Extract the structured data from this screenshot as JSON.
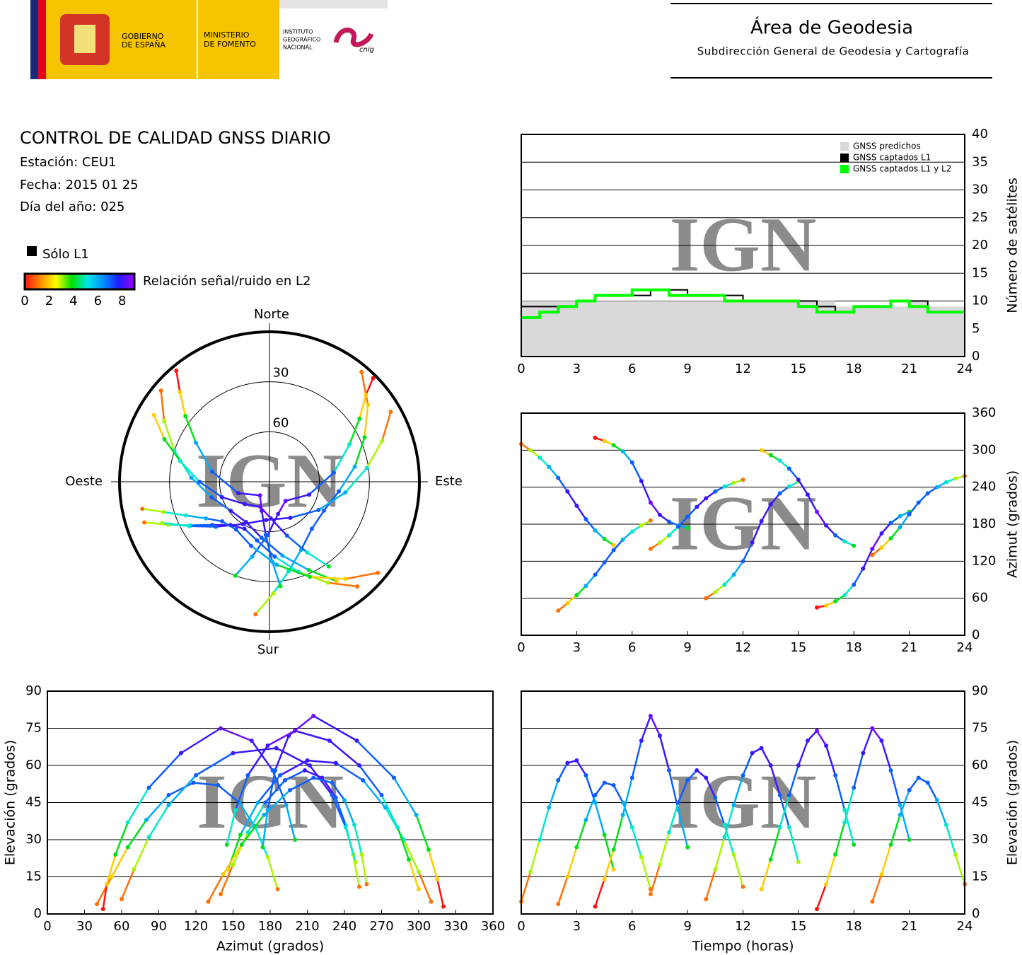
{
  "header": {
    "gobierno": [
      "GOBIERNO",
      "DE ESPAÑA"
    ],
    "ministerio": [
      "MINISTERIO",
      "DE FOMENTO"
    ],
    "instituto": [
      "INSTITUTO",
      "GEOGRÁFICO",
      "NACIONAL"
    ],
    "cnig": "cnig",
    "area": "Área de Geodesia",
    "subdireccion": "Subdirección General de Geodesia y Cartografía"
  },
  "report": {
    "title": "CONTROL DE CALIDAD GNSS DIARIO",
    "station": "Estación: CEU1",
    "date": "Fecha: 2015 01 25",
    "doy": "Día del año: 025"
  },
  "snr_legend": {
    "l1_only": "Sólo L1",
    "l1_color": "#000000",
    "label": "Relación señal/ruido en L2",
    "clim": [
      0,
      9
    ],
    "ticks": [
      0,
      2,
      4,
      6,
      8
    ],
    "colormap": [
      "#ff1010",
      "#ff8c00",
      "#ffff00",
      "#00e000",
      "#00e8e8",
      "#0090ff",
      "#1e1eff",
      "#a000ff"
    ]
  },
  "satellite_tracks": [
    {
      "t": [
        0,
        0.5,
        1,
        1.5,
        2,
        2.5,
        3,
        3.5,
        4,
        4.5,
        5
      ],
      "az": [
        310,
        300,
        288,
        273,
        255,
        233,
        210,
        188,
        170,
        156,
        146
      ],
      "el": [
        5,
        17,
        30,
        43,
        54,
        61,
        62,
        56,
        45,
        32,
        18
      ],
      "snr": [
        1,
        3,
        5,
        6,
        7,
        8,
        8,
        7,
        6,
        4,
        2
      ]
    },
    {
      "t": [
        2,
        2.5,
        3,
        3.5,
        4,
        4.5,
        5,
        5.5,
        6,
        6.5,
        7
      ],
      "az": [
        40,
        52,
        65,
        80,
        98,
        118,
        138,
        155,
        168,
        178,
        186
      ],
      "el": [
        4,
        15,
        27,
        38,
        48,
        53,
        52,
        45,
        35,
        23,
        10
      ],
      "snr": [
        1,
        2,
        4,
        6,
        7,
        7,
        7,
        6,
        5,
        3,
        1
      ]
    },
    {
      "t": [
        4,
        4.5,
        5,
        5.5,
        6,
        6.5,
        7,
        7.5,
        8,
        8.5,
        9
      ],
      "az": [
        320,
        315,
        308,
        298,
        280,
        250,
        215,
        195,
        184,
        178,
        174
      ],
      "el": [
        3,
        14,
        26,
        40,
        55,
        70,
        80,
        72,
        58,
        42,
        27
      ],
      "snr": [
        0,
        2,
        4,
        6,
        7,
        8,
        8.5,
        8,
        7,
        6,
        4
      ]
    },
    {
      "t": [
        7,
        7.5,
        8,
        8.5,
        9,
        9.5,
        10,
        10.5,
        11,
        11.5,
        12
      ],
      "az": [
        140,
        150,
        162,
        176,
        192,
        208,
        222,
        233,
        241,
        247,
        252
      ],
      "el": [
        8,
        20,
        33,
        45,
        54,
        58,
        55,
        47,
        36,
        24,
        11
      ],
      "snr": [
        1,
        3,
        5,
        7,
        7,
        8,
        8,
        7,
        5,
        3,
        1
      ]
    },
    {
      "t": [
        10,
        10.5,
        11,
        11.5,
        12,
        12.5,
        13,
        13.5,
        14,
        14.5,
        15
      ],
      "az": [
        60,
        70,
        82,
        98,
        120,
        150,
        185,
        212,
        230,
        241,
        249
      ],
      "el": [
        6,
        18,
        31,
        44,
        56,
        65,
        67,
        60,
        48,
        35,
        21
      ],
      "snr": [
        1,
        3,
        5,
        6,
        7,
        8,
        8,
        8,
        7,
        5,
        3
      ]
    },
    {
      "t": [
        13,
        13.5,
        14,
        14.5,
        15,
        15.5,
        16,
        16.5,
        17,
        17.5,
        18
      ],
      "az": [
        300,
        292,
        283,
        270,
        252,
        228,
        200,
        178,
        162,
        152,
        145
      ],
      "el": [
        10,
        22,
        35,
        48,
        60,
        70,
        74,
        68,
        56,
        42,
        28
      ],
      "snr": [
        2,
        4,
        5,
        7,
        8,
        8,
        8.5,
        8,
        7,
        5,
        4
      ]
    },
    {
      "t": [
        16,
        16.5,
        17,
        17.5,
        18,
        18.5,
        19,
        19.5,
        20,
        20.5,
        21
      ],
      "az": [
        45,
        48,
        55,
        65,
        82,
        108,
        140,
        165,
        182,
        193,
        200
      ],
      "el": [
        2,
        12,
        24,
        37,
        51,
        65,
        75,
        70,
        58,
        44,
        30
      ],
      "snr": [
        0,
        2,
        4,
        5,
        7,
        8,
        8.5,
        8,
        7,
        6,
        4
      ]
    },
    {
      "t": [
        19,
        19.5,
        20,
        20.5,
        21,
        21.5,
        22,
        22.5,
        23,
        23.5,
        24
      ],
      "az": [
        130,
        142,
        157,
        175,
        196,
        215,
        230,
        240,
        248,
        254,
        258
      ],
      "el": [
        5,
        16,
        28,
        40,
        50,
        55,
        53,
        46,
        36,
        24,
        12
      ],
      "snr": [
        1,
        2,
        4,
        6,
        7,
        7,
        7,
        6,
        5,
        3,
        1
      ]
    }
  ],
  "chart_data": [
    {
      "type": "count",
      "ylabel": "Número de satélites",
      "watermark": "IGN",
      "legend": "upper right",
      "grid": true,
      "xlim": [
        0,
        24
      ],
      "xticks": [
        0,
        3,
        6,
        9,
        12,
        15,
        18,
        21,
        24
      ],
      "ylim": [
        0,
        40
      ],
      "yticks": [
        0,
        5,
        10,
        15,
        20,
        25,
        30,
        35,
        40
      ],
      "x": [
        0,
        1,
        2,
        3,
        4,
        5,
        6,
        7,
        8,
        9,
        10,
        11,
        12,
        13,
        14,
        15,
        16,
        17,
        18,
        19,
        20,
        21,
        22,
        23,
        24
      ],
      "series": [
        {
          "name": "GNSS predichos",
          "color": "#d9d9d9",
          "values": [
            10,
            10,
            10,
            10,
            10,
            10,
            10,
            10,
            10,
            10,
            10,
            10,
            10,
            10,
            10,
            10,
            10,
            9,
            9,
            9,
            9,
            10,
            9,
            9,
            9
          ]
        },
        {
          "name": "GNSS captados L1",
          "color": "#000000",
          "values": [
            9,
            9,
            9,
            10,
            11,
            11,
            11,
            12,
            12,
            11,
            11,
            11,
            10,
            10,
            10,
            10,
            9,
            8,
            9,
            9,
            10,
            10,
            8,
            8,
            8
          ]
        },
        {
          "name": "GNSS captados L1 y L2",
          "color": "#00ff00",
          "values": [
            7,
            8,
            9,
            10,
            11,
            11,
            12,
            12,
            11,
            11,
            11,
            10,
            10,
            10,
            10,
            9,
            8,
            8,
            9,
            9,
            10,
            9,
            8,
            8,
            8
          ]
        }
      ]
    },
    {
      "type": "track",
      "x_field": "t",
      "y_field": "az",
      "ylabel": "Azimut (grados)",
      "watermark": "IGN",
      "grid": true,
      "xlim": [
        0,
        24
      ],
      "xticks": [
        0,
        3,
        6,
        9,
        12,
        15,
        18,
        21,
        24
      ],
      "ylim": [
        0,
        360
      ],
      "yticks": [
        0,
        60,
        120,
        180,
        240,
        300,
        360
      ]
    },
    {
      "type": "track",
      "x_field": "az",
      "y_field": "el",
      "xlabel": "Azimut (grados)",
      "ylabel": "Elevación (grados)",
      "watermark": "IGN",
      "grid": true,
      "xlim": [
        0,
        360
      ],
      "xticks": [
        0,
        30,
        60,
        90,
        120,
        150,
        180,
        210,
        240,
        270,
        300,
        330,
        360
      ],
      "ylim": [
        0,
        90
      ],
      "yticks": [
        0,
        15,
        30,
        45,
        60,
        75,
        90
      ]
    },
    {
      "type": "track",
      "x_field": "t",
      "y_field": "el",
      "xlabel": "Tiempo (horas)",
      "ylabel": "Elevación (grados)",
      "watermark": "IGN",
      "grid": true,
      "xlim": [
        0,
        24
      ],
      "xticks": [
        0,
        3,
        6,
        9,
        12,
        15,
        18,
        21,
        24
      ],
      "ylim": [
        0,
        90
      ],
      "yticks": [
        0,
        15,
        30,
        45,
        60,
        75,
        90
      ]
    },
    {
      "type": "polar",
      "watermark": "IGN",
      "rings": [
        30,
        60
      ],
      "north": "Norte",
      "south": "Sur",
      "east": "Este",
      "west": "Oeste"
    }
  ]
}
